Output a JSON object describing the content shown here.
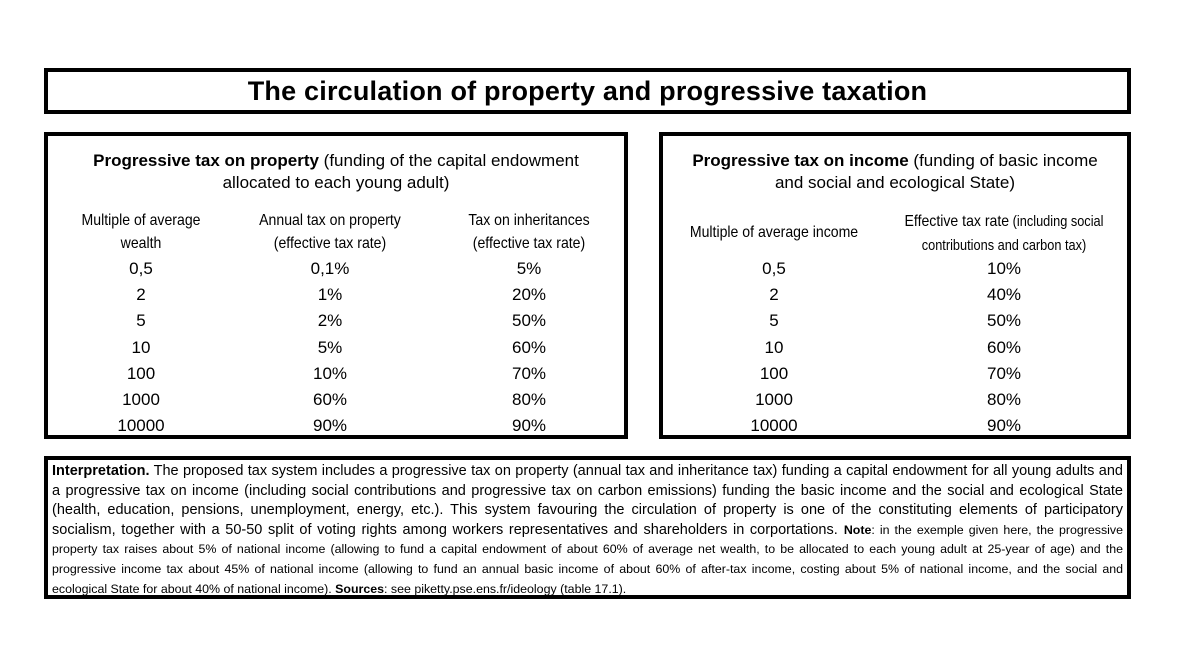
{
  "title": "The circulation of property and progressive taxation",
  "property_panel": {
    "title_bold": "Progressive tax on property",
    "title_rest": " (funding of the capital endowment allocated to each young adult)",
    "col1_header": "Multiple of average wealth",
    "col2_header": "Annual tax on property (effective tax rate)",
    "col3_header": "Tax on inheritances (effective tax rate)",
    "rows": [
      {
        "multiple": "0,5",
        "annual": "0,1%",
        "inheritance": "5%"
      },
      {
        "multiple": "2",
        "annual": "1%",
        "inheritance": "20%"
      },
      {
        "multiple": "5",
        "annual": "2%",
        "inheritance": "50%"
      },
      {
        "multiple": "10",
        "annual": "5%",
        "inheritance": "60%"
      },
      {
        "multiple": "100",
        "annual": "10%",
        "inheritance": "70%"
      },
      {
        "multiple": "1000",
        "annual": "60%",
        "inheritance": "80%"
      },
      {
        "multiple": "10000",
        "annual": "90%",
        "inheritance": "90%"
      }
    ]
  },
  "income_panel": {
    "title_bold": "Progressive tax on income",
    "title_rest": " (funding of basic income and social and ecological State)",
    "col1_header": "Multiple of average income",
    "col2_header_main": "Effective tax rate",
    "col2_header_sub": " (including social contributions and carbon tax)",
    "rows": [
      {
        "multiple": "0,5",
        "rate": "10%"
      },
      {
        "multiple": "2",
        "rate": "40%"
      },
      {
        "multiple": "5",
        "rate": "50%"
      },
      {
        "multiple": "10",
        "rate": "60%"
      },
      {
        "multiple": "100",
        "rate": "70%"
      },
      {
        "multiple": "1000",
        "rate": "80%"
      },
      {
        "multiple": "10000",
        "rate": "90%"
      }
    ]
  },
  "notes": {
    "interpretation_label": "Interpretation.",
    "interpretation_text": " The proposed tax system includes a progressive tax on property (annual tax and inheritance tax) funding a capital endowment for all young adults and a progressive tax on income (including social contributions and progressive tax on carbon emissions) funding the basic income and the social and ecological State (health, education, pensions, unemployment, energy, etc.). This system favouring the circulation of property is one of the constituting elements of participatory socialism, together with a 50-50 split of voting rights among workers representatives and shareholders in corportations.",
    "note_label": "Note",
    "note_text": ": in the exemple given here, the progressive property tax raises about 5% of national income (allowing to fund a capital endowment of about 60% of average net wealth, to be allocated to each young adult at 25-year of age) and the progressive income tax about 45% of national income (allowing to fund an annual basic income of about 60% of after-tax income, costing about 5% of national income, and the social and ecological State for about 40% of national income).",
    "sources_label": "Sources",
    "sources_text": ": see piketty.pse.ens.fr/ideology (table 17.1)."
  }
}
